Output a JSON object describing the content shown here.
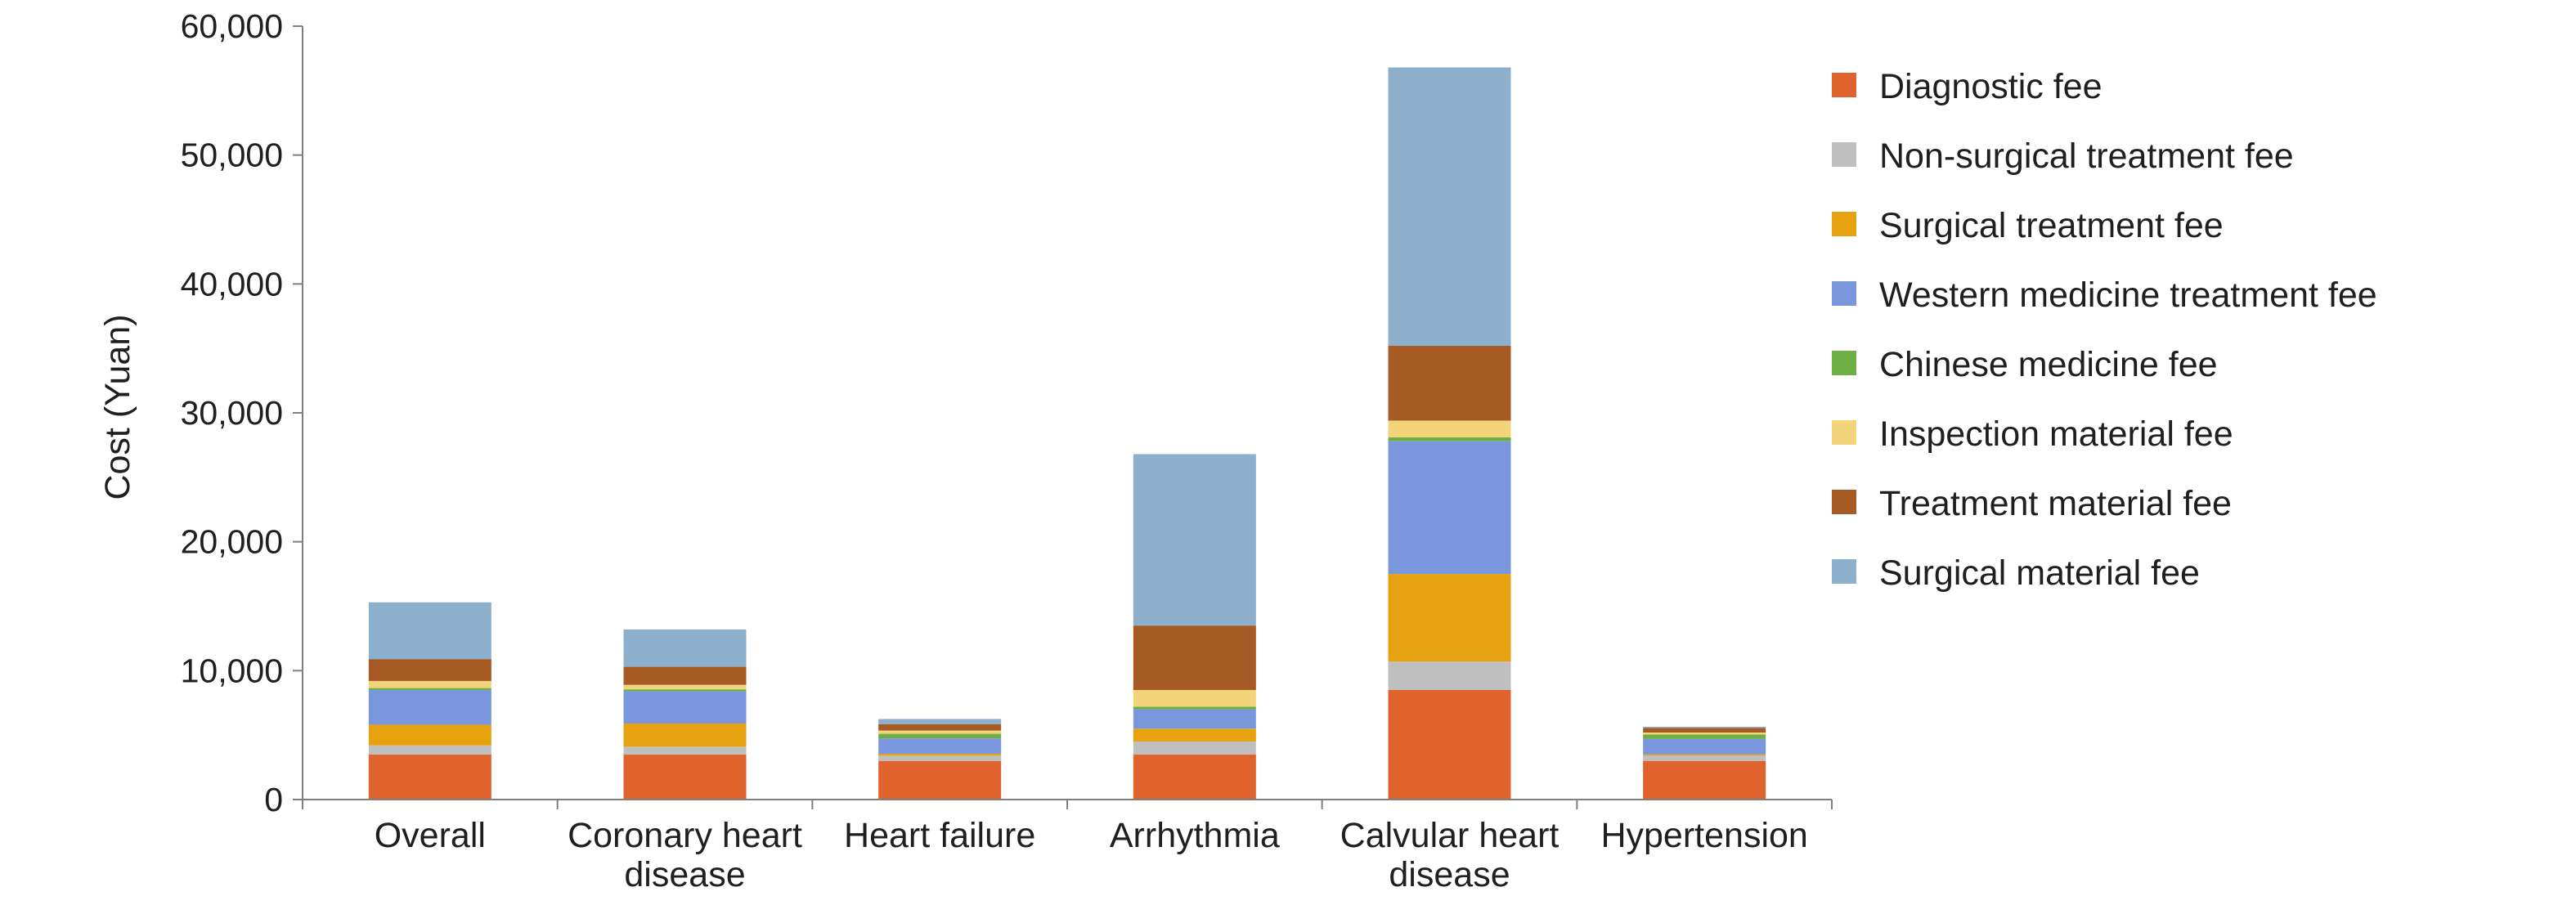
{
  "chart_data": {
    "type": "bar",
    "stacked": true,
    "title": "",
    "xlabel": "",
    "ylabel": "Cost (Yuan)",
    "ylim": [
      0,
      60000
    ],
    "yticks": [
      0,
      10000,
      20000,
      30000,
      40000,
      50000,
      60000
    ],
    "ytick_labels": [
      "0",
      "10,000",
      "20,000",
      "30,000",
      "40,000",
      "50,000",
      "60,000"
    ],
    "grid": false,
    "legend_position": "right",
    "categories": [
      [
        "Overall"
      ],
      [
        "Coronary heart",
        "disease"
      ],
      [
        "Heart failure"
      ],
      [
        "Arrhythmia"
      ],
      [
        "Calvular heart",
        "disease"
      ],
      [
        "Hypertension"
      ]
    ],
    "series": [
      {
        "name": "Diagnostic fee",
        "color": "#E0622D",
        "values": [
          3500,
          3500,
          3000,
          3500,
          8500,
          3000
        ]
      },
      {
        "name": "Non-surgical treatment fee",
        "color": "#BFBFBF",
        "values": [
          700,
          600,
          400,
          1000,
          2200,
          400
        ]
      },
      {
        "name": "Surgical treatment fee",
        "color": "#E6A20F",
        "values": [
          1600,
          1800,
          150,
          1000,
          6800,
          100
        ]
      },
      {
        "name": "Western medicine treatment fee",
        "color": "#7A96DC",
        "values": [
          2700,
          2500,
          1200,
          1500,
          10300,
          1200
        ]
      },
      {
        "name": "Chinese medicine fee",
        "color": "#6DAF45",
        "values": [
          150,
          150,
          350,
          200,
          300,
          350
        ]
      },
      {
        "name": "Inspection material fee",
        "color": "#F3D47A",
        "values": [
          550,
          350,
          250,
          1300,
          1300,
          150
        ]
      },
      {
        "name": "Treatment material fee",
        "color": "#A85A25",
        "values": [
          1700,
          1400,
          500,
          5000,
          5800,
          350
        ]
      },
      {
        "name": "Surgical material fee",
        "color": "#8DB0CC",
        "values": [
          4400,
          2900,
          400,
          13300,
          21600,
          100
        ]
      }
    ]
  }
}
